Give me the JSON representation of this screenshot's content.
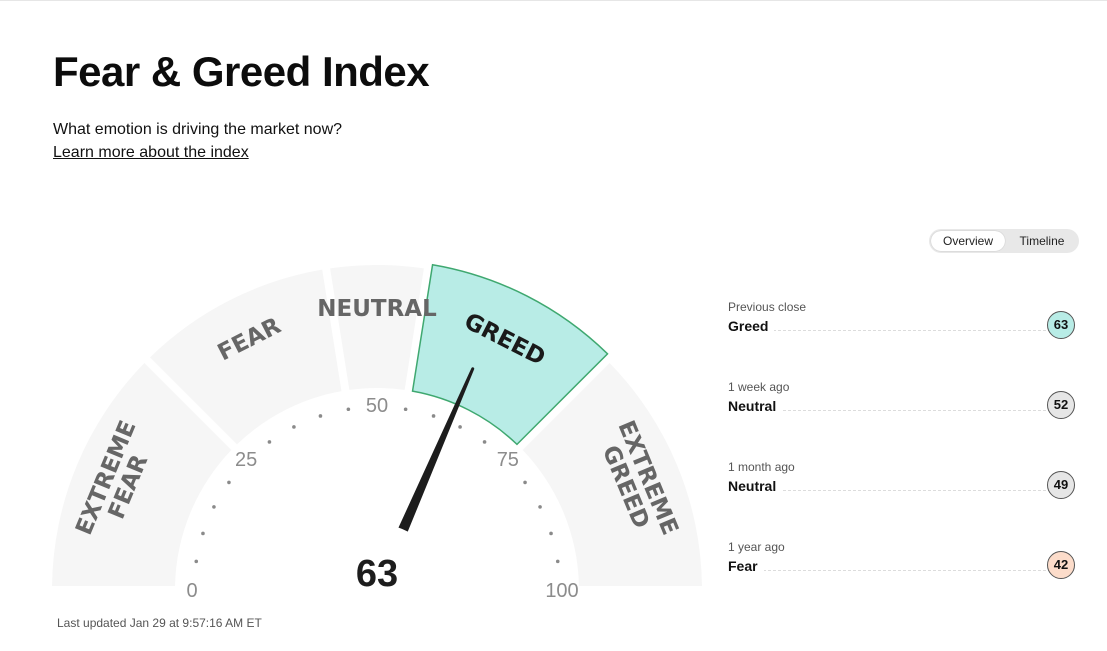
{
  "page": {
    "title": "Fear & Greed Index",
    "subtitle": "What emotion is driving the market now?",
    "learn_more": "Learn more about the index",
    "last_updated": "Last updated Jan 29 at 9:57:16 AM ET"
  },
  "view_toggle": {
    "options": [
      "Overview",
      "Timeline"
    ],
    "selected": "Overview"
  },
  "gauge": {
    "value": 63,
    "value_label": "63",
    "range": [
      0,
      100
    ],
    "tick_labels": [
      "0",
      "25",
      "50",
      "75",
      "100"
    ],
    "active_segment": "greed",
    "segments": [
      {
        "id": "extreme-fear",
        "lines": [
          "EXTREME",
          "FEAR"
        ],
        "from": 0,
        "to": 25
      },
      {
        "id": "fear",
        "lines": [
          "FEAR"
        ],
        "from": 25,
        "to": 45
      },
      {
        "id": "neutral",
        "lines": [
          "NEUTRAL"
        ],
        "from": 45,
        "to": 55
      },
      {
        "id": "greed",
        "lines": [
          "GREED"
        ],
        "from": 55,
        "to": 75
      },
      {
        "id": "extreme-greed",
        "lines": [
          "EXTREME",
          "GREED"
        ],
        "from": 75,
        "to": 100
      }
    ],
    "colors": {
      "segment_fill": "#f6f6f6",
      "active_fill": "#b8ece6",
      "active_stroke": "#3fa870",
      "needle": "#1d1d1d",
      "label": "#666666",
      "active_label": "#1a1a1a"
    }
  },
  "history": [
    {
      "when": "Previous close",
      "rating": "Greed",
      "value": "63",
      "color": "#b8ece6"
    },
    {
      "when": "1 week ago",
      "rating": "Neutral",
      "value": "52",
      "color": "#e6e6e6"
    },
    {
      "when": "1 month ago",
      "rating": "Neutral",
      "value": "49",
      "color": "#e6e6e6"
    },
    {
      "when": "1 year ago",
      "rating": "Fear",
      "value": "42",
      "color": "#fcdcca"
    }
  ]
}
